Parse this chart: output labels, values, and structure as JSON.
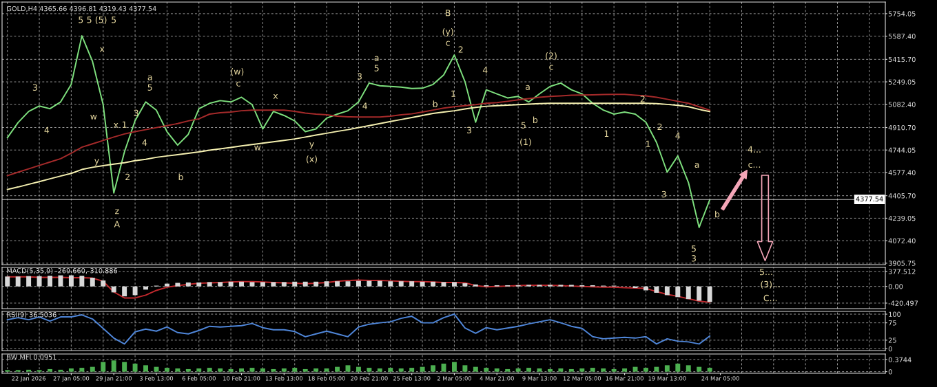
{
  "chart_data": [
    {
      "type": "line",
      "title": "GOLD,H4 4365.66 4396.81 4319.43 4377.54",
      "tick_labels": "y",
      "grid": true,
      "categories": [
        null,
        null,
        null,
        null,
        null,
        null,
        null,
        null,
        null,
        null,
        null,
        null,
        null,
        null,
        null,
        null,
        null,
        null,
        null,
        null,
        null,
        null,
        null,
        null,
        null,
        null,
        null,
        null,
        null,
        null,
        null,
        null,
        null,
        null,
        null,
        null,
        null,
        null,
        null,
        null,
        null,
        null,
        null,
        null,
        null,
        null,
        null,
        null,
        null,
        null,
        null,
        null,
        null,
        null,
        null,
        null,
        null,
        null,
        null,
        null,
        null,
        null,
        null,
        null,
        null,
        null,
        null,
        null,
        null,
        null,
        null,
        null,
        null,
        null,
        null,
        null,
        null,
        null,
        null,
        null,
        null,
        null,
        null
      ],
      "ylim": [
        3895,
        5840
      ],
      "yticks": [
        {
          "value": 3905.75,
          "label": "3905.75"
        },
        {
          "value": 4072.4,
          "label": "4072.40"
        },
        {
          "value": 4239.05,
          "label": "4239.05"
        },
        {
          "value": 4405.7,
          "label": "4405.70"
        },
        {
          "value": 4577.4,
          "label": "4577.40"
        },
        {
          "value": 4744.05,
          "label": "4744.05"
        },
        {
          "value": 4910.7,
          "label": "4910.70"
        },
        {
          "value": 5082.4,
          "label": "5082.40"
        },
        {
          "value": 5249.05,
          "label": "5249.05"
        },
        {
          "value": 5415.7,
          "label": "5415.70"
        },
        {
          "value": 5587.4,
          "label": "5587.40"
        },
        {
          "value": 5754.05,
          "label": "5754.05"
        }
      ],
      "series": [
        {
          "color": "#7ee07e",
          "values": [
            4835,
            4947,
            5030,
            5070,
            5050,
            5100,
            5230,
            5590,
            5400,
            5080,
            4426,
            4730,
            4962,
            5100,
            5039,
            4880,
            4780,
            4860,
            5050,
            5090,
            5110,
            5100,
            5135,
            5080,
            4900,
            5030,
            5000,
            4960,
            4880,
            4900,
            4980,
            5010,
            5035,
            5100,
            5240,
            5220,
            5215,
            5210,
            5200,
            5202,
            5230,
            5300,
            5448,
            5250,
            4950,
            5190,
            5160,
            5130,
            5141,
            5100,
            5160,
            5215,
            5240,
            5190,
            5160,
            5090,
            5040,
            5010,
            5025,
            5010,
            4950,
            4800,
            4580,
            4700,
            4503,
            4171,
            4375,
            null,
            null,
            null,
            null,
            null,
            null,
            null,
            null,
            null,
            null,
            null,
            null,
            null,
            null,
            null,
            null
          ]
        },
        {
          "color": "#a52a2a",
          "values": [
            4554,
            4580,
            4605,
            4630,
            4655,
            4680,
            4720,
            4765,
            4790,
            4815,
            4840,
            4863,
            4880,
            4895,
            4910,
            4925,
            4940,
            4960,
            4975,
            5010,
            5020,
            5025,
            5035,
            5039,
            5039,
            5039,
            5039,
            5030,
            5018,
            5010,
            5005,
            4995,
            4990,
            4988,
            4988,
            4988,
            4995,
            5005,
            5012,
            5025,
            5040,
            5055,
            5065,
            5072,
            5080,
            5090,
            5095,
            5105,
            5116,
            5125,
            5135,
            5141,
            5145,
            5150,
            5151,
            5153,
            5155,
            5156,
            5156,
            5150,
            5145,
            5135,
            5120,
            5105,
            5090,
            5065,
            5039,
            null,
            null,
            null,
            null,
            null,
            null,
            null,
            null,
            null,
            null,
            null,
            null,
            null,
            null,
            null,
            null
          ]
        },
        {
          "color": "#f5f0b0",
          "values": [
            4452,
            4470,
            4490,
            4510,
            4531,
            4551,
            4571,
            4600,
            4616,
            4628,
            4640,
            4650,
            4665,
            4675,
            4690,
            4700,
            4710,
            4720,
            4730,
            4743,
            4753,
            4763,
            4775,
            4785,
            4795,
            4805,
            4815,
            4826,
            4840,
            4855,
            4868,
            4882,
            4895,
            4910,
            4925,
            4940,
            4955,
            4970,
            4985,
            5000,
            5015,
            5025,
            5035,
            5048,
            5060,
            5068,
            5072,
            5076,
            5080,
            5084,
            5088,
            5090,
            5090,
            5090,
            5090,
            5090,
            5090,
            5090,
            5090,
            5090,
            5090,
            5088,
            5082,
            5075,
            5065,
            5045,
            5029,
            null,
            null,
            null,
            null,
            null,
            null,
            null,
            null,
            null,
            null,
            null,
            null,
            null,
            null,
            null,
            null
          ]
        }
      ],
      "ref_lines": [
        {
          "axis": "y",
          "value": 4377.54,
          "label": "4377.54",
          "color": "#c0c0c0"
        }
      ],
      "annotations": [
        "5",
        "5",
        "(5)",
        "5",
        "x",
        "w",
        "x",
        "1",
        "y",
        "z",
        "A",
        "2",
        "3",
        "4",
        "3",
        "4",
        "a",
        "5",
        "b",
        "(w)",
        "c",
        "x",
        "w",
        "y",
        "(x)",
        "a",
        "5",
        "3",
        "4",
        "b",
        "B",
        "(y)",
        "c",
        "2",
        "1",
        "3",
        "4",
        "a",
        "5",
        "b",
        "(1)",
        "(2)",
        "c",
        "2",
        "1",
        "2",
        "1",
        "4",
        "3",
        "a",
        "5",
        "3",
        "b",
        "4...",
        "c..."
      ]
    },
    {
      "type": "bar",
      "title": "MACD(5,35,9) -269.660,-310.886",
      "tick_labels": "y",
      "grid": true,
      "categories": [
        null,
        null,
        null,
        null,
        null,
        null,
        null,
        null,
        null,
        null,
        null,
        null,
        null,
        null,
        null,
        null,
        null,
        null,
        null,
        null,
        null,
        null,
        null,
        null,
        null,
        null,
        null,
        null,
        null,
        null,
        null,
        null,
        null,
        null,
        null,
        null,
        null,
        null,
        null,
        null,
        null,
        null,
        null,
        null,
        null,
        null,
        null,
        null,
        null,
        null,
        null,
        null,
        null,
        null,
        null,
        null,
        null,
        null,
        null,
        null,
        null,
        null,
        null,
        null,
        null,
        null,
        null,
        null,
        null,
        null,
        null,
        null,
        null,
        null,
        null,
        null,
        null,
        null,
        null,
        null,
        null,
        null,
        null
      ],
      "ylim": [
        -560,
        480
      ],
      "yticks": [
        {
          "value": 377.512,
          "label": "377.512"
        },
        {
          "value": 0,
          "label": "0.00"
        },
        {
          "value": -420.497,
          "label": "-420.497"
        }
      ],
      "series": [
        {
          "color": "#d8d8d8",
          "values": [
            250,
            250,
            260,
            260,
            270,
            280,
            280,
            270,
            220,
            150,
            -150,
            -250,
            -220,
            -80,
            20,
            70,
            90,
            100,
            100,
            110,
            110,
            120,
            120,
            110,
            110,
            110,
            110,
            120,
            120,
            120,
            130,
            130,
            130,
            140,
            140,
            140,
            130,
            130,
            130,
            120,
            120,
            110,
            110,
            80,
            50,
            30,
            30,
            30,
            30,
            40,
            40,
            40,
            40,
            40,
            30,
            30,
            20,
            20,
            0,
            -40,
            -100,
            -160,
            -220,
            -270,
            -320,
            -360,
            -390,
            null,
            null,
            null,
            null,
            null,
            null,
            null,
            null,
            null,
            null,
            null,
            null,
            null,
            null,
            null,
            null
          ]
        },
        {
          "type": "line",
          "color": "#c0282d",
          "values": [
            240,
            240,
            240,
            230,
            230,
            230,
            220,
            220,
            210,
            130,
            -140,
            -290,
            -290,
            -220,
            -100,
            -20,
            20,
            50,
            80,
            90,
            100,
            110,
            120,
            120,
            110,
            100,
            90,
            80,
            70,
            80,
            100,
            130,
            150,
            160,
            150,
            150,
            140,
            130,
            120,
            120,
            110,
            100,
            100,
            90,
            20,
            -10,
            0,
            10,
            20,
            30,
            30,
            30,
            20,
            10,
            0,
            -10,
            -20,
            -20,
            -30,
            -40,
            -50,
            -130,
            -200,
            -250,
            -310,
            -370,
            -400,
            null,
            null,
            null,
            null,
            null,
            null,
            null,
            null,
            null,
            null,
            null,
            null,
            null,
            null,
            null,
            null
          ]
        }
      ],
      "annotations": [
        "5...",
        "(3)...",
        "C..."
      ]
    },
    {
      "type": "line",
      "title": "RSI(9) 36.5036",
      "tick_labels": "y",
      "grid": true,
      "categories": [
        null,
        null,
        null,
        null,
        null,
        null,
        null,
        null,
        null,
        null,
        null,
        null,
        null,
        null,
        null,
        null,
        null,
        null,
        null,
        null,
        null,
        null,
        null,
        null,
        null,
        null,
        null,
        null,
        null,
        null,
        null,
        null,
        null,
        null,
        null,
        null,
        null,
        null,
        null,
        null,
        null,
        null,
        null,
        null,
        null,
        null,
        null,
        null,
        null,
        null,
        null,
        null,
        null,
        null,
        null,
        null,
        null,
        null,
        null,
        null,
        null,
        null,
        null,
        null,
        null,
        null,
        null,
        null,
        null,
        null,
        null,
        null,
        null,
        null,
        null,
        null,
        null,
        null,
        null,
        null,
        null,
        null,
        null
      ],
      "ylim": [
        -5,
        108
      ],
      "yticks": [
        0,
        25,
        75,
        100
      ],
      "series": [
        {
          "color": "#4f86d9",
          "values": [
            84,
            90,
            84,
            92,
            80,
            92,
            92,
            98,
            86,
            59,
            31,
            14,
            49,
            57,
            51,
            63,
            47,
            43,
            53,
            65,
            63,
            65,
            67,
            73,
            61,
            55,
            55,
            50,
            35,
            43,
            51,
            43,
            35,
            63,
            71,
            75,
            78,
            88,
            94,
            75,
            75,
            90,
            100,
            60,
            45,
            61,
            55,
            60,
            65,
            72,
            78,
            84,
            75,
            65,
            59,
            35,
            29,
            31,
            33,
            31,
            35,
            14,
            29,
            22,
            20,
            14,
            37,
            null,
            null,
            null,
            null,
            null,
            null,
            null,
            null,
            null,
            null,
            null,
            null,
            null,
            null,
            null,
            null
          ]
        }
      ]
    },
    {
      "type": "bar",
      "title": "BW MFI 0.0951",
      "grid": true,
      "categories": [
        null,
        null,
        "22 Jan 2026",
        null,
        null,
        null,
        "27 Jan 05:00",
        null,
        null,
        null,
        "29 Jan 21:00",
        null,
        null,
        null,
        "3 Feb 13:00",
        null,
        null,
        null,
        "6 Feb 05:00",
        null,
        null,
        null,
        "10 Feb 21:00",
        null,
        null,
        null,
        "13 Feb 13:00",
        null,
        null,
        null,
        "18 Feb 05:00",
        null,
        null,
        null,
        "20 Feb 21:00",
        null,
        null,
        null,
        "25 Feb 13:00",
        null,
        null,
        null,
        "2 Mar 05:00",
        null,
        null,
        null,
        "4 Mar 21:00",
        null,
        null,
        null,
        "9 Mar 13:00",
        null,
        null,
        null,
        "12 Mar 05:00",
        null,
        null,
        null,
        "16 Mar 21:00",
        null,
        null,
        null,
        "19 Mar 13:00",
        null,
        null,
        null,
        null,
        "24 Mar 05:00",
        null,
        null,
        null,
        null,
        null,
        null,
        null,
        null,
        null,
        null,
        null,
        null,
        null,
        null,
        null
      ],
      "ylim": [
        -0.05,
        0.55
      ],
      "yticks": [
        0,
        0.3744
      ],
      "series": [
        {
          "color": "#4caf50",
          "values": [
            0.05,
            0.05,
            0.06,
            0.05,
            0.08,
            0.06,
            0.1,
            0.12,
            0.15,
            0.3,
            0.35,
            0.3,
            0.25,
            0.2,
            0.15,
            0.12,
            0.1,
            0.08,
            0.1,
            0.12,
            0.1,
            0.08,
            0.1,
            0.12,
            0.1,
            0.08,
            0.1,
            0.12,
            0.08,
            0.1,
            0.1,
            0.15,
            0.2,
            0.15,
            0.12,
            0.1,
            0.12,
            0.1,
            0.12,
            0.15,
            0.2,
            0.25,
            0.3,
            0.2,
            0.15,
            0.12,
            0.1,
            0.08,
            0.1,
            0.12,
            0.1,
            0.08,
            0.1,
            0.08,
            0.1,
            0.12,
            0.1,
            0.08,
            0.1,
            0.15,
            0.12,
            0.15,
            0.2,
            0.25,
            0.2,
            0.15,
            0.12,
            null,
            null,
            null,
            null,
            null,
            null,
            null,
            null,
            null,
            null,
            null,
            null,
            null,
            null,
            null,
            null
          ]
        }
      ]
    }
  ]
}
